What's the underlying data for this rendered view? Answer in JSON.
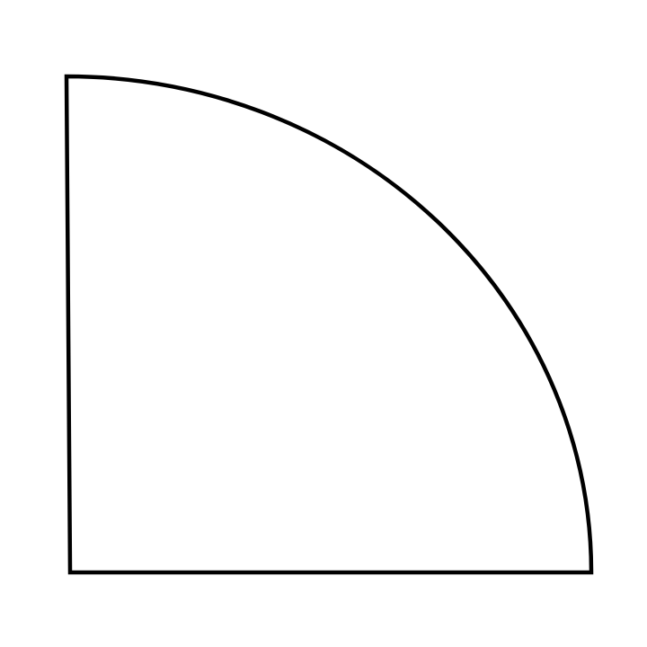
{
  "diagram": {
    "shape": "quarter-circle",
    "fill": "#ffffff",
    "stroke": "#000000"
  }
}
